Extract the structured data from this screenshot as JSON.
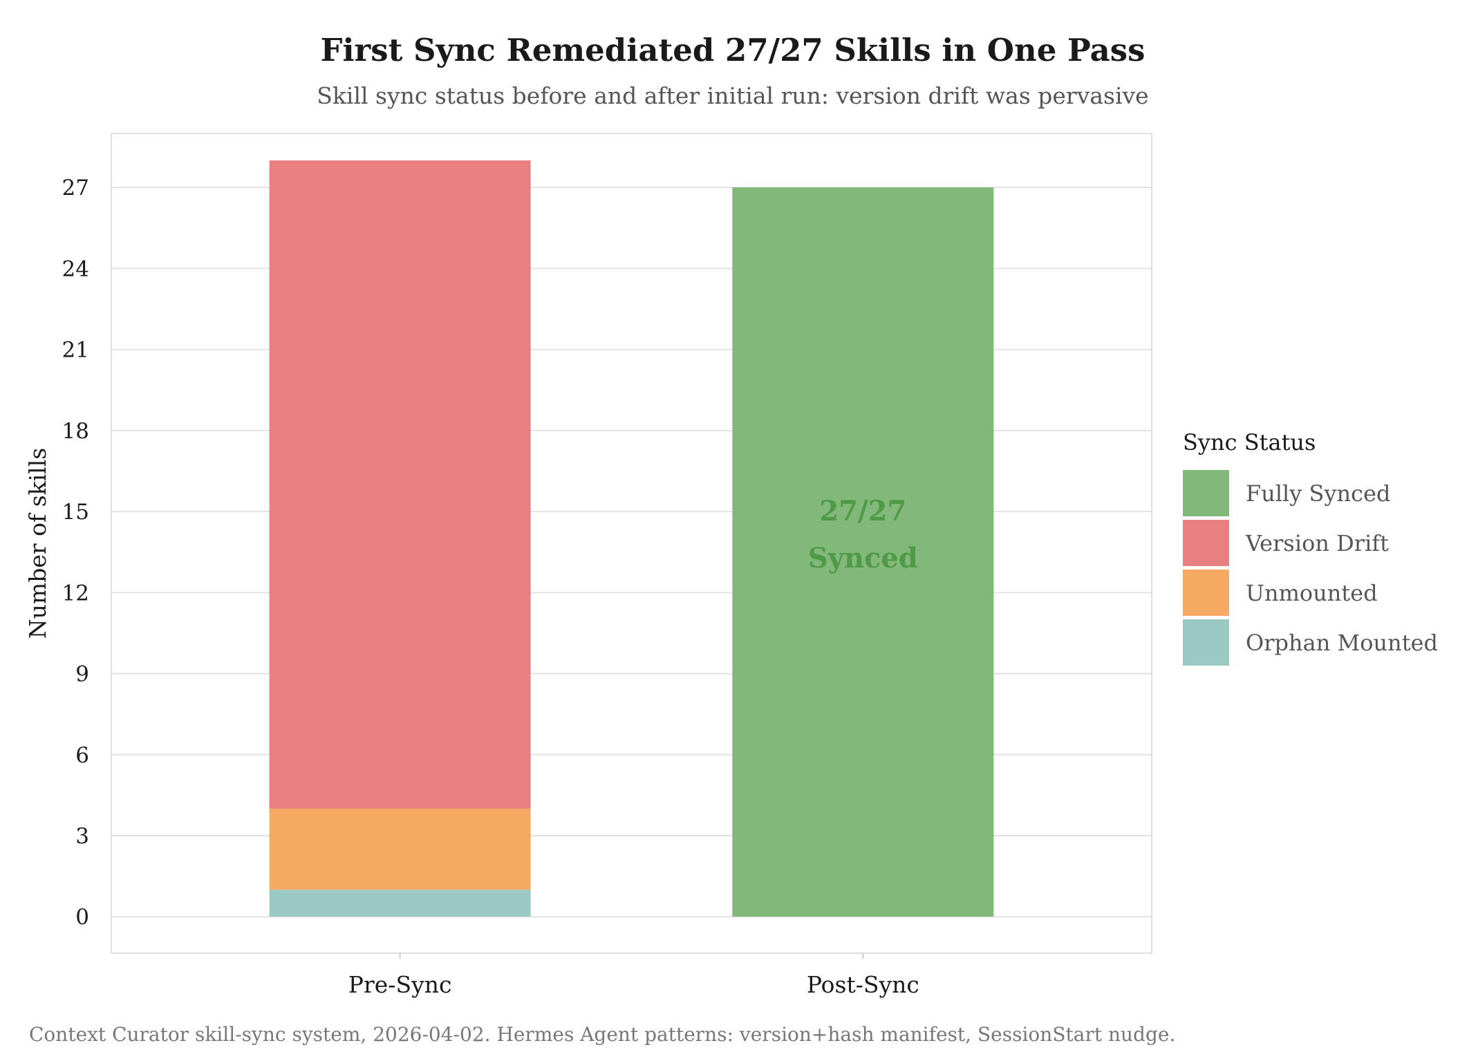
{
  "chart_data": {
    "type": "bar",
    "stacked": true,
    "title": "First Sync Remediated 27/27 Skills in One Pass",
    "subtitle": "Skill sync status before and after initial run: version drift was pervasive",
    "xlabel": "",
    "ylabel": "Number of skills",
    "ylim": [
      -1.35,
      29
    ],
    "yticks": [
      0,
      3,
      6,
      9,
      12,
      15,
      18,
      21,
      24,
      27
    ],
    "grid": true,
    "categories": [
      "Pre-Sync",
      "Post-Sync"
    ],
    "series": [
      {
        "name": "Orphan Mounted",
        "color": "#9ac9c4",
        "values": [
          1,
          0
        ]
      },
      {
        "name": "Unmounted",
        "color": "#f5a962",
        "values": [
          3,
          0
        ]
      },
      {
        "name": "Version Drift",
        "color": "#e88081",
        "values": [
          24,
          0
        ]
      },
      {
        "name": "Fully Synced",
        "color": "#82b87a",
        "values": [
          0,
          27
        ]
      }
    ],
    "legend": {
      "title": "Sync Status",
      "position": "right",
      "order": [
        "Fully Synced",
        "Version Drift",
        "Unmounted",
        "Orphan Mounted"
      ]
    },
    "annotations": [
      {
        "category": "Post-Sync",
        "y": 13.8,
        "lines": [
          "27/27",
          "Synced"
        ],
        "color": "#4e9a46"
      }
    ],
    "caption": "Context Curator skill-sync system, 2026-04-02. Hermes Agent patterns: version+hash manifest, SessionStart nudge."
  }
}
